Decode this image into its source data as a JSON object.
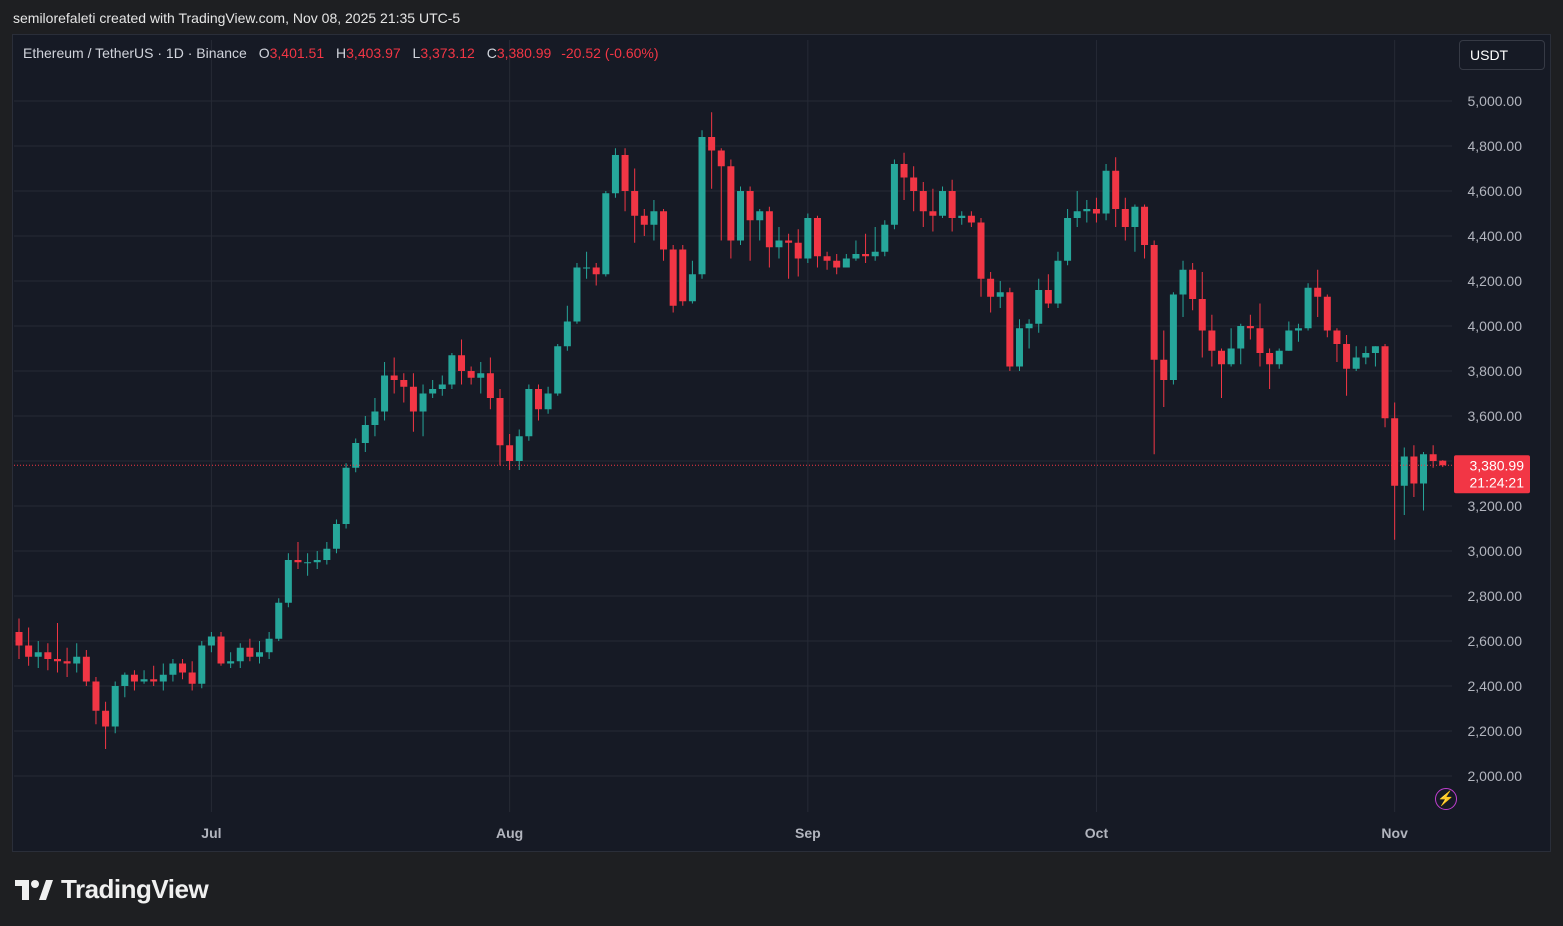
{
  "caption": "semilorefaleti created with TradingView.com, Nov 08, 2025 21:35 UTC-5",
  "legend": {
    "symbol": "Ethereum / TetherUS · 1D · Binance",
    "o_label": "O",
    "o_value": "3,401.51",
    "h_label": "H",
    "h_value": "3,403.97",
    "l_label": "L",
    "l_value": "3,373.12",
    "c_label": "C",
    "c_value": "3,380.99",
    "change": "-20.52 (-0.60%)"
  },
  "currency_button": "USDT",
  "brand": "TradingView",
  "icons": {
    "alert": "lightning-icon",
    "logo": "tradingview-logo-icon"
  },
  "colors": {
    "up": "#26a69a",
    "down": "#f23645",
    "background": "#161a25",
    "grid": "#262a35",
    "axis_text": "#b2b5be"
  },
  "price_tag": {
    "price": "3,380.99",
    "countdown": "21:24:21"
  },
  "chart_data": {
    "type": "candlestick",
    "ylim": [
      1880,
      5150
    ],
    "y_ticks": [
      2000,
      2200,
      2400,
      2600,
      2800,
      3000,
      3200,
      3600,
      3800,
      4000,
      4200,
      4400,
      4600,
      4800,
      5000
    ],
    "y_tick_labels": [
      "2,000.00",
      "2,200.00",
      "2,400.00",
      "2,600.00",
      "2,800.00",
      "3,000.00",
      "3,200.00",
      "3,600.00",
      "3,800.00",
      "4,000.00",
      "4,200.00",
      "4,400.00",
      "4,600.00",
      "4,800.00",
      "5,000.00"
    ],
    "last_price": 3380.99,
    "x_labels": [
      {
        "label": "Jul",
        "date": "2025-07-01"
      },
      {
        "label": "Aug",
        "date": "2025-08-01"
      },
      {
        "label": "Sep",
        "date": "2025-09-01"
      },
      {
        "label": "Oct",
        "date": "2025-10-01"
      },
      {
        "label": "Nov",
        "date": "2025-11-01"
      }
    ],
    "start_date": "2025-06-11",
    "candles": [
      [
        2640,
        2580,
        2700,
        2520
      ],
      [
        2580,
        2530,
        2660,
        2490
      ],
      [
        2530,
        2550,
        2600,
        2480
      ],
      [
        2550,
        2520,
        2590,
        2470
      ],
      [
        2520,
        2510,
        2680,
        2460
      ],
      [
        2510,
        2500,
        2570,
        2440
      ],
      [
        2500,
        2530,
        2590,
        2460
      ],
      [
        2530,
        2420,
        2560,
        2400
      ],
      [
        2420,
        2290,
        2440,
        2230
      ],
      [
        2290,
        2220,
        2330,
        2120
      ],
      [
        2220,
        2400,
        2420,
        2190
      ],
      [
        2400,
        2450,
        2460,
        2350
      ],
      [
        2450,
        2420,
        2470,
        2380
      ],
      [
        2420,
        2430,
        2470,
        2410
      ],
      [
        2430,
        2420,
        2490,
        2400
      ],
      [
        2420,
        2450,
        2500,
        2380
      ],
      [
        2450,
        2500,
        2520,
        2420
      ],
      [
        2500,
        2460,
        2520,
        2430
      ],
      [
        2460,
        2410,
        2510,
        2380
      ],
      [
        2410,
        2580,
        2600,
        2390
      ],
      [
        2580,
        2620,
        2640,
        2550
      ],
      [
        2620,
        2500,
        2640,
        2490
      ],
      [
        2500,
        2510,
        2550,
        2480
      ],
      [
        2510,
        2570,
        2590,
        2480
      ],
      [
        2570,
        2530,
        2610,
        2510
      ],
      [
        2530,
        2550,
        2600,
        2500
      ],
      [
        2550,
        2610,
        2640,
        2520
      ],
      [
        2610,
        2770,
        2790,
        2600
      ],
      [
        2770,
        2960,
        2990,
        2750
      ],
      [
        2960,
        2950,
        3040,
        2920
      ],
      [
        2950,
        2950,
        2990,
        2890
      ],
      [
        2950,
        2960,
        3000,
        2920
      ],
      [
        2960,
        3010,
        3040,
        2940
      ],
      [
        3010,
        3120,
        3140,
        2990
      ],
      [
        3120,
        3370,
        3390,
        3100
      ],
      [
        3370,
        3480,
        3500,
        3350
      ],
      [
        3480,
        3560,
        3600,
        3440
      ],
      [
        3560,
        3620,
        3680,
        3510
      ],
      [
        3620,
        3780,
        3840,
        3580
      ],
      [
        3780,
        3760,
        3860,
        3700
      ],
      [
        3760,
        3730,
        3790,
        3660
      ],
      [
        3730,
        3620,
        3790,
        3530
      ],
      [
        3620,
        3700,
        3740,
        3510
      ],
      [
        3700,
        3720,
        3760,
        3680
      ],
      [
        3720,
        3740,
        3780,
        3690
      ],
      [
        3740,
        3870,
        3880,
        3720
      ],
      [
        3870,
        3800,
        3940,
        3740
      ],
      [
        3800,
        3770,
        3820,
        3740
      ],
      [
        3770,
        3790,
        3840,
        3700
      ],
      [
        3790,
        3680,
        3860,
        3630
      ],
      [
        3680,
        3470,
        3720,
        3380
      ],
      [
        3470,
        3400,
        3520,
        3360
      ],
      [
        3400,
        3510,
        3540,
        3360
      ],
      [
        3510,
        3720,
        3740,
        3490
      ],
      [
        3720,
        3630,
        3740,
        3580
      ],
      [
        3630,
        3700,
        3730,
        3610
      ],
      [
        3700,
        3910,
        3920,
        3690
      ],
      [
        3910,
        4020,
        4090,
        3890
      ],
      [
        4020,
        4260,
        4280,
        4010
      ],
      [
        4260,
        4260,
        4330,
        4210
      ],
      [
        4260,
        4230,
        4280,
        4180
      ],
      [
        4230,
        4590,
        4600,
        4220
      ],
      [
        4590,
        4760,
        4790,
        4570
      ],
      [
        4760,
        4600,
        4790,
        4510
      ],
      [
        4600,
        4490,
        4700,
        4370
      ],
      [
        4490,
        4450,
        4520,
        4400
      ],
      [
        4450,
        4510,
        4560,
        4380
      ],
      [
        4510,
        4340,
        4520,
        4290
      ],
      [
        4340,
        4090,
        4360,
        4060
      ],
      [
        4340,
        4110,
        4360,
        4090
      ],
      [
        4110,
        4230,
        4290,
        4100
      ],
      [
        4230,
        4840,
        4870,
        4210
      ],
      [
        4840,
        4780,
        4950,
        4610
      ],
      [
        4780,
        4710,
        4790,
        4380
      ],
      [
        4710,
        4380,
        4740,
        4300
      ],
      [
        4380,
        4600,
        4620,
        4360
      ],
      [
        4600,
        4470,
        4620,
        4290
      ],
      [
        4470,
        4510,
        4520,
        4380
      ],
      [
        4510,
        4350,
        4530,
        4260
      ],
      [
        4350,
        4380,
        4440,
        4300
      ],
      [
        4380,
        4370,
        4410,
        4210
      ],
      [
        4370,
        4300,
        4430,
        4220
      ],
      [
        4300,
        4480,
        4500,
        4280
      ],
      [
        4480,
        4310,
        4490,
        4260
      ],
      [
        4310,
        4290,
        4330,
        4250
      ],
      [
        4290,
        4260,
        4320,
        4230
      ],
      [
        4260,
        4300,
        4320,
        4260
      ],
      [
        4300,
        4320,
        4380,
        4290
      ],
      [
        4320,
        4310,
        4410,
        4280
      ],
      [
        4310,
        4330,
        4440,
        4290
      ],
      [
        4330,
        4450,
        4470,
        4310
      ],
      [
        4450,
        4720,
        4740,
        4430
      ],
      [
        4720,
        4660,
        4770,
        4560
      ],
      [
        4660,
        4600,
        4710,
        4510
      ],
      [
        4600,
        4510,
        4640,
        4440
      ],
      [
        4510,
        4490,
        4610,
        4420
      ],
      [
        4490,
        4600,
        4620,
        4480
      ],
      [
        4600,
        4480,
        4650,
        4420
      ],
      [
        4480,
        4490,
        4510,
        4450
      ],
      [
        4490,
        4460,
        4510,
        4440
      ],
      [
        4460,
        4210,
        4480,
        4130
      ],
      [
        4210,
        4130,
        4240,
        4060
      ],
      [
        4130,
        4150,
        4200,
        4080
      ],
      [
        4150,
        3820,
        4170,
        3800
      ],
      [
        3820,
        3990,
        4030,
        3800
      ],
      [
        3990,
        4010,
        4030,
        3900
      ],
      [
        4010,
        4160,
        4210,
        3970
      ],
      [
        4160,
        4100,
        4230,
        4080
      ],
      [
        4100,
        4290,
        4330,
        4080
      ],
      [
        4290,
        4480,
        4520,
        4270
      ],
      [
        4480,
        4510,
        4600,
        4440
      ],
      [
        4510,
        4520,
        4560,
        4460
      ],
      [
        4520,
        4500,
        4570,
        4460
      ],
      [
        4500,
        4690,
        4720,
        4470
      ],
      [
        4690,
        4520,
        4750,
        4440
      ],
      [
        4520,
        4440,
        4570,
        4380
      ],
      [
        4440,
        4530,
        4540,
        4330
      ],
      [
        4530,
        4360,
        4540,
        4300
      ],
      [
        4360,
        3850,
        4380,
        3430
      ],
      [
        3850,
        3760,
        3980,
        3640
      ],
      [
        3760,
        4140,
        4150,
        3740
      ],
      [
        4140,
        4250,
        4290,
        4040
      ],
      [
        4250,
        4120,
        4280,
        4070
      ],
      [
        4120,
        3980,
        4240,
        3860
      ],
      [
        3980,
        3890,
        4050,
        3820
      ],
      [
        3890,
        3830,
        3900,
        3680
      ],
      [
        3830,
        3900,
        3990,
        3820
      ],
      [
        3900,
        4000,
        4010,
        3830
      ],
      [
        4000,
        3990,
        4050,
        3940
      ],
      [
        3990,
        3880,
        4100,
        3820
      ],
      [
        3880,
        3830,
        3900,
        3720
      ],
      [
        3830,
        3890,
        3900,
        3810
      ],
      [
        3890,
        3980,
        4020,
        3890
      ],
      [
        3980,
        3990,
        4010,
        3930
      ],
      [
        3990,
        4170,
        4190,
        3980
      ],
      [
        4170,
        4130,
        4250,
        4040
      ],
      [
        4130,
        3980,
        4140,
        3950
      ],
      [
        3980,
        3920,
        3990,
        3840
      ],
      [
        3920,
        3810,
        3960,
        3690
      ],
      [
        3810,
        3860,
        3910,
        3800
      ],
      [
        3860,
        3880,
        3910,
        3830
      ],
      [
        3880,
        3910,
        3910,
        3820
      ],
      [
        3910,
        3590,
        3920,
        3550
      ],
      [
        3590,
        3290,
        3660,
        3050
      ],
      [
        3290,
        3420,
        3460,
        3160
      ],
      [
        3420,
        3300,
        3470,
        3240
      ],
      [
        3300,
        3430,
        3440,
        3180
      ],
      [
        3430,
        3400,
        3470,
        3370
      ],
      [
        3401.51,
        3380.99,
        3403.97,
        3373.12
      ]
    ]
  }
}
